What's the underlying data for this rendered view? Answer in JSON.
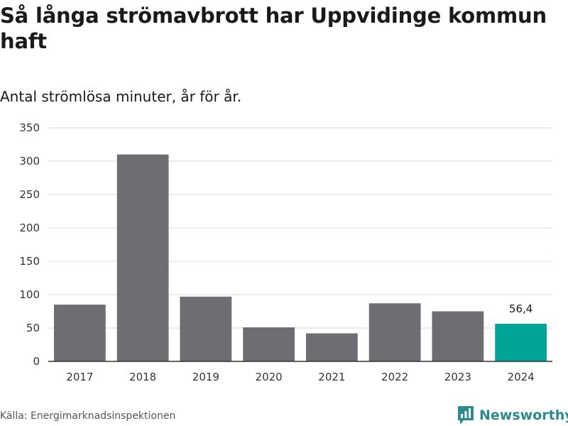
{
  "title": "Så långa strömavbrott har Uppvidinge kommun haft",
  "subtitle": "Antal strömlösa minuter, år för år.",
  "source": "Källa: Energimarknadsinspektionen",
  "brand": {
    "name": "Newsworthy",
    "icon": "newsworthy-logo-icon"
  },
  "colors": {
    "bar": "#6d6d72",
    "highlight": "#00a398",
    "grid": "#d9d9d9",
    "axis": "#333333",
    "brand": "#2a8a8e"
  },
  "chart_data": {
    "type": "bar",
    "title": "Så långa strömavbrott har Uppvidinge kommun haft",
    "subtitle": "Antal strömlösa minuter, år för år.",
    "xlabel": "",
    "ylabel": "",
    "categories": [
      "2017",
      "2018",
      "2019",
      "2020",
      "2021",
      "2022",
      "2023",
      "2024"
    ],
    "values": [
      85,
      310,
      97,
      51,
      42,
      87,
      75,
      56.4
    ],
    "highlight_index": 7,
    "data_labels": [
      {
        "index": 7,
        "text": "56,4"
      }
    ],
    "ylim": [
      0,
      350
    ],
    "yticks": [
      0,
      50,
      100,
      150,
      200,
      250,
      300,
      350
    ],
    "grid": true
  }
}
